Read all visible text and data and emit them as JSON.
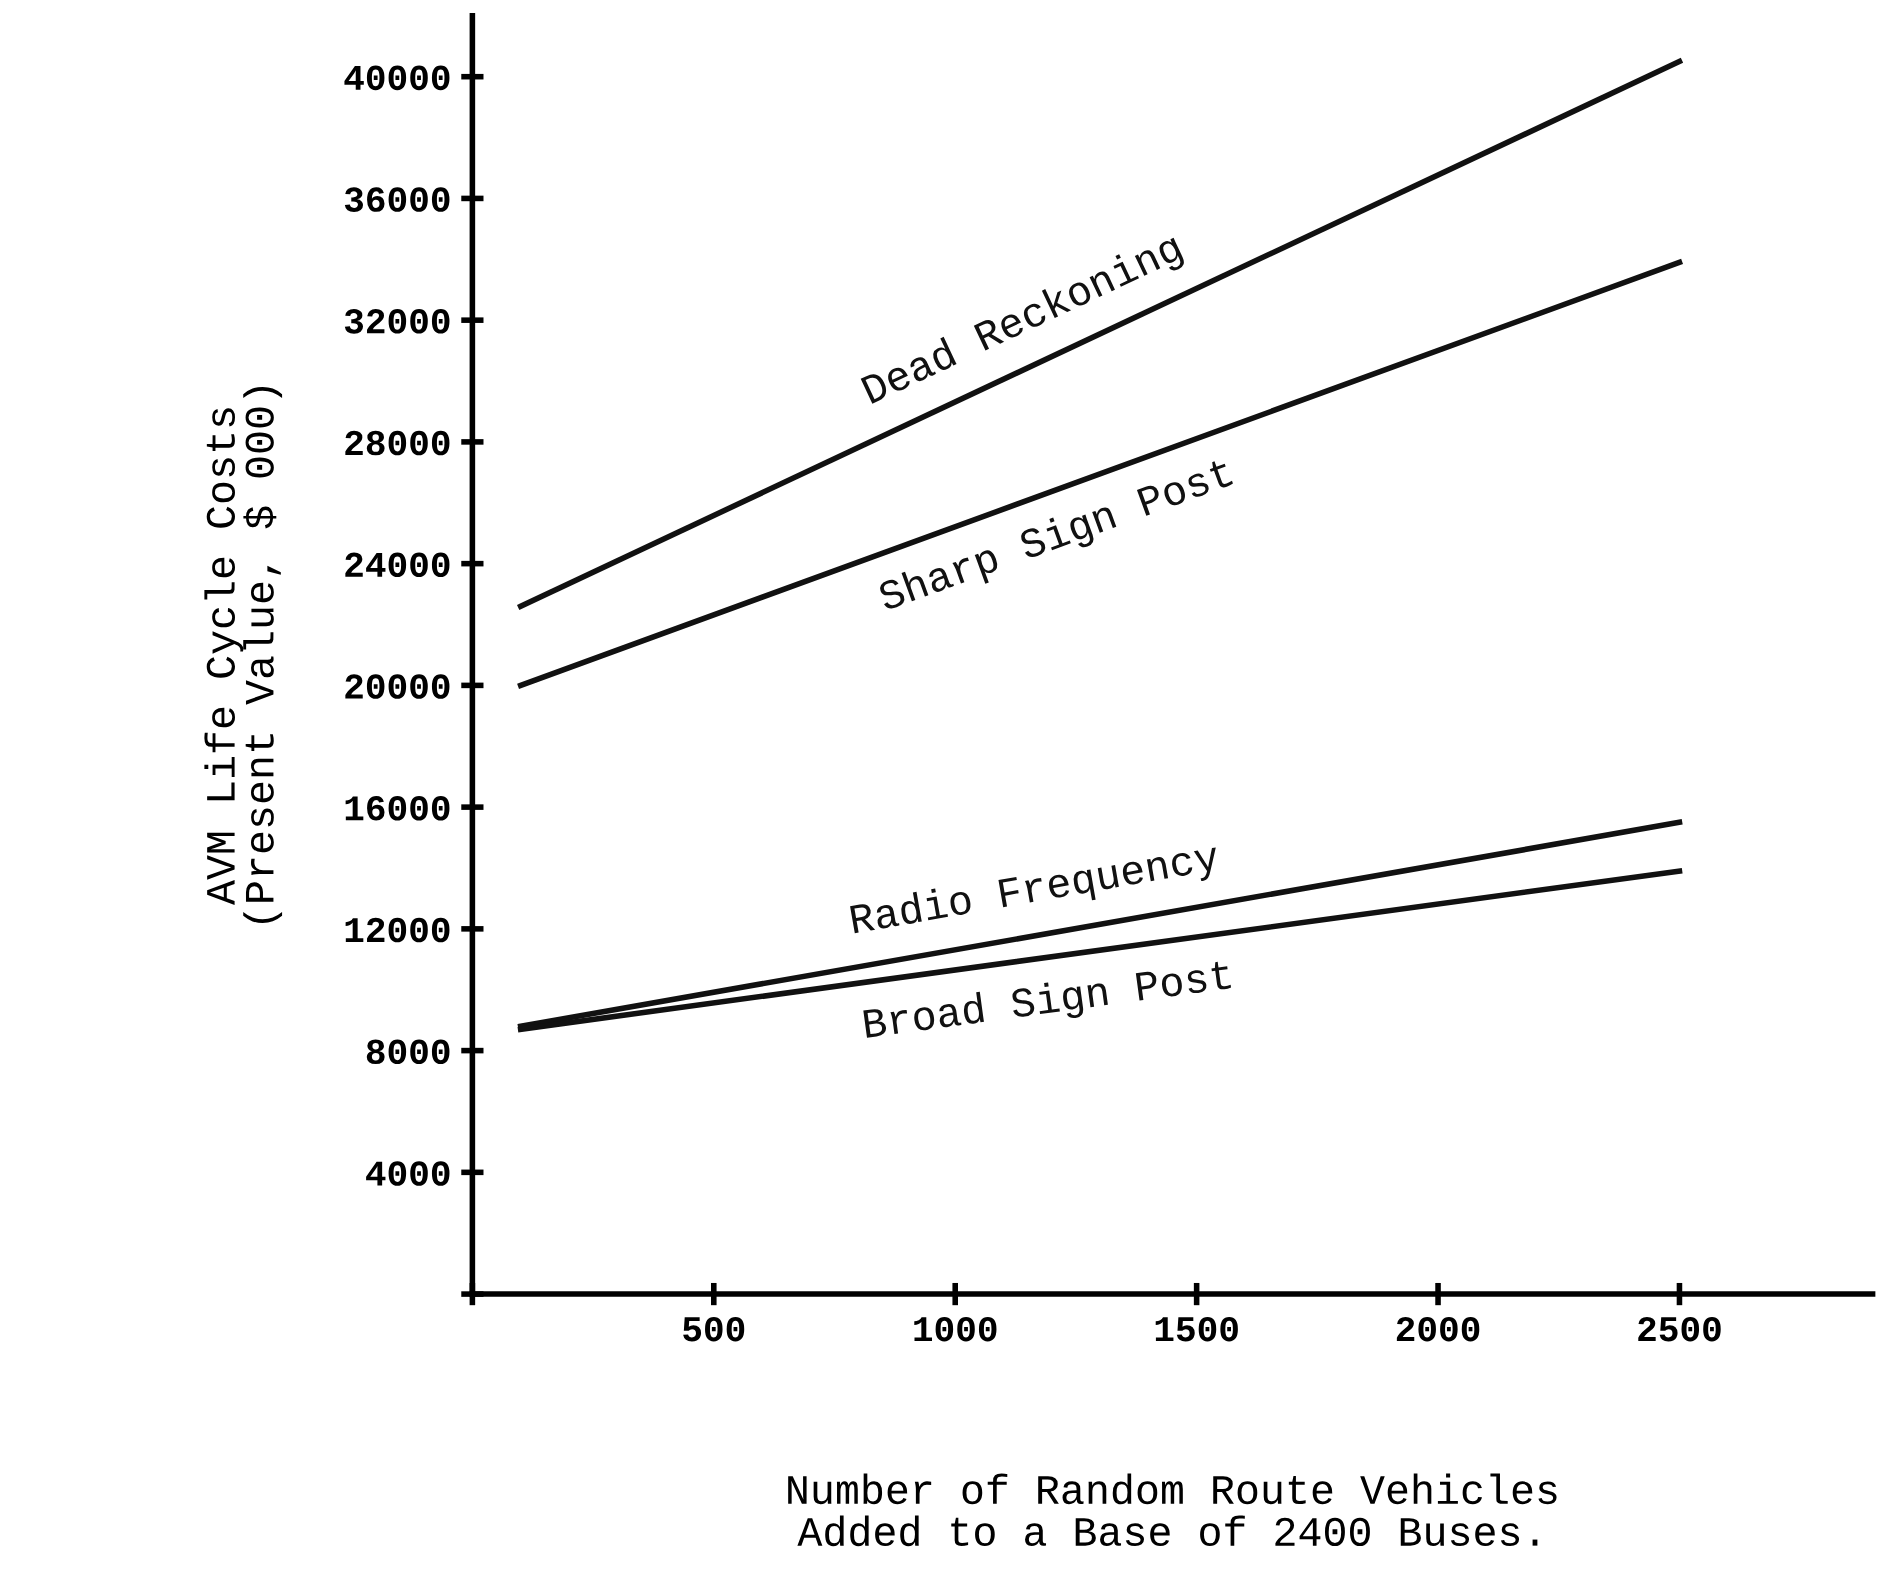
{
  "chart_data": {
    "type": "line",
    "xlabel": "Number of Random Route Vehicles\nAdded to a Base of 2400 Buses.",
    "ylabel": "AVM Life Cycle Costs\n(Present Value, $ 000)",
    "x": [
      100,
      2500
    ],
    "series": [
      {
        "name": "Dead Reckoning",
        "color": "#111111",
        "values": [
          22600,
          40500
        ]
      },
      {
        "name": "Sharp Sign Post",
        "color": "#111111",
        "values": [
          20000,
          33900
        ]
      },
      {
        "name": "Radio Frequency",
        "color": "#111111",
        "values": [
          8800,
          15500
        ]
      },
      {
        "name": "Broad Sign Post",
        "color": "#111111",
        "values": [
          8700,
          13900
        ]
      }
    ],
    "xlim": [
      0,
      2900
    ],
    "xticks": [
      {
        "value": 0,
        "label": null
      },
      500,
      1000,
      1500,
      2000,
      2500
    ],
    "ylim": [
      0,
      42000
    ],
    "yticks": [
      {
        "value": 0,
        "label": null
      },
      4000,
      8000,
      12000,
      16000,
      20000,
      24000,
      28000,
      32000,
      36000,
      40000
    ],
    "grid": false,
    "legend": false,
    "marker": "none",
    "line_style": "solid"
  }
}
